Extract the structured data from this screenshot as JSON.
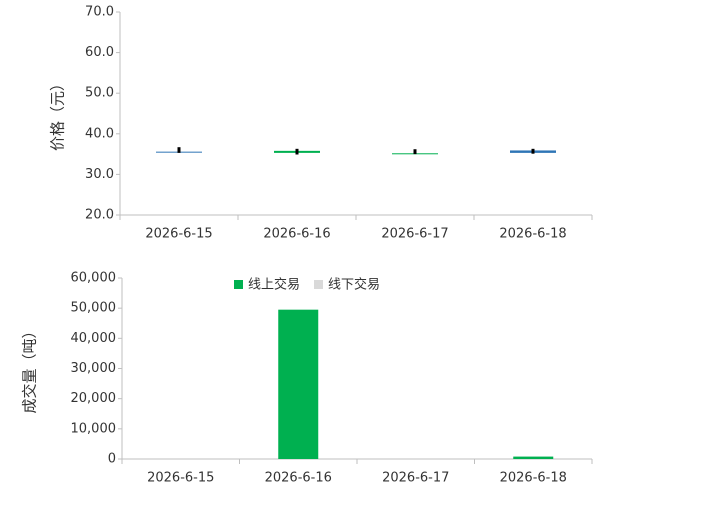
{
  "chart_data": [
    {
      "type": "candlestick",
      "y_label": "价格（元）",
      "categories": [
        "2026-6-15",
        "2026-6-16",
        "2026-6-17",
        "2026-6-18"
      ],
      "open": [
        35.5,
        35.8,
        35.2,
        35.3
      ],
      "high": [
        36.7,
        36.3,
        36.2,
        36.3
      ],
      "low": [
        35.3,
        34.9,
        35.0,
        35.1
      ],
      "close": [
        35.6,
        35.3,
        35.0,
        35.9
      ],
      "up_color": "#2e75b6",
      "down_color": "#00b050",
      "wick_color": "#000000",
      "ylim": [
        20,
        70
      ],
      "yticks": [
        {
          "value": 20,
          "label": "20.0"
        },
        {
          "value": 30,
          "label": "30.0"
        },
        {
          "value": 40,
          "label": "40.0"
        },
        {
          "value": 50,
          "label": "50.0"
        },
        {
          "value": 60,
          "label": "60.0"
        },
        {
          "value": 70,
          "label": "70.0"
        }
      ]
    },
    {
      "type": "bar",
      "y_label": "成交量（吨）",
      "categories": [
        "2026-6-15",
        "2026-6-16",
        "2026-6-17",
        "2026-6-18"
      ],
      "series": [
        {
          "name": "线上交易",
          "color": "#00b050",
          "values": [
            0,
            49500,
            0,
            800
          ]
        },
        {
          "name": "线下交易",
          "color": "#d9d9d9",
          "values": [
            0,
            0,
            0,
            0
          ]
        }
      ],
      "stacked": true,
      "legend": "top",
      "ylim": [
        0,
        60000
      ],
      "yticks": [
        0,
        {
          "value": 10000,
          "label": "10,000"
        },
        {
          "value": 20000,
          "label": "20,000"
        },
        {
          "value": 30000,
          "label": "30,000"
        },
        {
          "value": 40000,
          "label": "40,000"
        },
        {
          "value": 50000,
          "label": "50,000"
        },
        {
          "value": 60000,
          "label": "60,000"
        }
      ]
    }
  ]
}
